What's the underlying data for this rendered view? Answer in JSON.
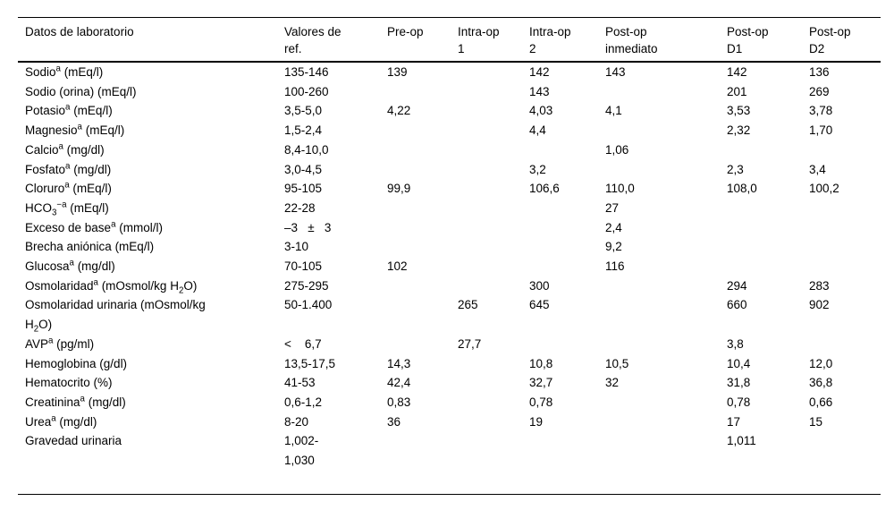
{
  "page": {
    "background_color": "#ffffff",
    "text_color": "#000000",
    "rule_color": "#000000"
  },
  "table": {
    "name": "Datos de laboratorio",
    "columns": [
      {
        "key": "label",
        "label": "Datos de laboratorio"
      },
      {
        "key": "ref",
        "label": "Valores de\nref."
      },
      {
        "key": "preop",
        "label": "Pre-op"
      },
      {
        "key": "intraop1",
        "label": "Intra-op\n1"
      },
      {
        "key": "intraop2",
        "label": "Intra-op\n2"
      },
      {
        "key": "postop_inmediato",
        "label": "Post-op\ninmediato"
      },
      {
        "key": "postop_d1",
        "label": "Post-op\nD1"
      },
      {
        "key": "postop_d2",
        "label": "Post-op\nD2"
      }
    ],
    "value_keys": [
      "ref",
      "preop",
      "intraop1",
      "intraop2",
      "postop_inmediato",
      "postop_d1",
      "postop_d2"
    ],
    "rows": [
      {
        "label": "Sodio^{a} (mEq/l)",
        "ref": "135-146",
        "preop": "139",
        "intraop1": "",
        "intraop2": "142",
        "postop_inmediato": "143",
        "postop_d1": "142",
        "postop_d2": "136"
      },
      {
        "label": "Sodio (orina) (mEq/l)",
        "ref": "100-260",
        "preop": "",
        "intraop1": "",
        "intraop2": "143",
        "postop_inmediato": "",
        "postop_d1": "201",
        "postop_d2": "269"
      },
      {
        "label": "Potasio^{a} (mEq/l)",
        "ref": "3,5-5,0",
        "preop": "4,22",
        "intraop1": "",
        "intraop2": "4,03",
        "postop_inmediato": "4,1",
        "postop_d1": "3,53",
        "postop_d2": "3,78"
      },
      {
        "label": "Magnesio^{a} (mEq/l)",
        "ref": "1,5-2,4",
        "preop": "",
        "intraop1": "",
        "intraop2": "4,4",
        "postop_inmediato": "",
        "postop_d1": "2,32",
        "postop_d2": "1,70"
      },
      {
        "label": "Calcio^{a} (mg/dl)",
        "ref": "8,4-10,0",
        "preop": "",
        "intraop1": "",
        "intraop2": "",
        "postop_inmediato": "1,06",
        "postop_d1": "",
        "postop_d2": ""
      },
      {
        "label": "Fosfato^{a} (mg/dl)",
        "ref": "3,0-4,5",
        "preop": "",
        "intraop1": "",
        "intraop2": "3,2",
        "postop_inmediato": "",
        "postop_d1": "2,3",
        "postop_d2": "3,4"
      },
      {
        "label": "Cloruro^{a} (mEq/l)",
        "ref": "95-105",
        "preop": "99,9",
        "intraop1": "",
        "intraop2": "106,6",
        "postop_inmediato": "110,0",
        "postop_d1": "108,0",
        "postop_d2": "100,2"
      },
      {
        "label": "HCO_{3}^{−a} (mEq/l)",
        "ref": "22-28",
        "preop": "",
        "intraop1": "",
        "intraop2": "",
        "postop_inmediato": "27",
        "postop_d1": "",
        "postop_d2": ""
      },
      {
        "label": "Exceso de base^{a} (mmol/l)",
        "ref": "–3   ±   3",
        "preop": "",
        "intraop1": "",
        "intraop2": "",
        "postop_inmediato": "2,4",
        "postop_d1": "",
        "postop_d2": ""
      },
      {
        "label": "Brecha aniónica (mEq/l)",
        "ref": "3-10",
        "preop": "",
        "intraop1": "",
        "intraop2": "",
        "postop_inmediato": "9,2",
        "postop_d1": "",
        "postop_d2": ""
      },
      {
        "label": "Glucosa^{a} (mg/dl)",
        "ref": "70-105",
        "preop": "102",
        "intraop1": "",
        "intraop2": "",
        "postop_inmediato": "116",
        "postop_d1": "",
        "postop_d2": ""
      },
      {
        "label": "Osmolaridad^{a} (mOsmol/kg H_{2}O)",
        "ref": "275-295",
        "preop": "",
        "intraop1": "",
        "intraop2": "300",
        "postop_inmediato": "",
        "postop_d1": "294",
        "postop_d2": "283"
      },
      {
        "label": "Osmolaridad urinaria (mOsmol/kg\nH_{2}O)",
        "ref": "50-1.400",
        "preop": "",
        "intraop1": "265",
        "intraop2": "645",
        "postop_inmediato": "",
        "postop_d1": "660",
        "postop_d2": "902"
      },
      {
        "label": "AVP^{a} (pg/ml)",
        "ref": "<    6,7",
        "preop": "",
        "intraop1": "27,7",
        "intraop2": "",
        "postop_inmediato": "",
        "postop_d1": "3,8",
        "postop_d2": ""
      },
      {
        "label": "Hemoglobina (g/dl)",
        "ref": "13,5-17,5",
        "preop": "14,3",
        "intraop1": "",
        "intraop2": "10,8",
        "postop_inmediato": "10,5",
        "postop_d1": "10,4",
        "postop_d2": "12,0"
      },
      {
        "label": "Hematocrito (%)",
        "ref": "41-53",
        "preop": "42,4",
        "intraop1": "",
        "intraop2": "32,7",
        "postop_inmediato": "32",
        "postop_d1": "31,8",
        "postop_d2": "36,8"
      },
      {
        "label": "Creatinina^{a} (mg/dl)",
        "ref": "0,6-1,2",
        "preop": "0,83",
        "intraop1": "",
        "intraop2": "0,78",
        "postop_inmediato": "",
        "postop_d1": "0,78",
        "postop_d2": "0,66"
      },
      {
        "label": "Urea^{a} (mg/dl)",
        "ref": "8-20",
        "preop": "36",
        "intraop1": "",
        "intraop2": "19",
        "postop_inmediato": "",
        "postop_d1": "17",
        "postop_d2": "15"
      },
      {
        "label": "Gravedad urinaria",
        "ref": "1,002-\n1,030",
        "preop": "",
        "intraop1": "",
        "intraop2": "",
        "postop_inmediato": "",
        "postop_d1": "1,011",
        "postop_d2": ""
      }
    ]
  }
}
